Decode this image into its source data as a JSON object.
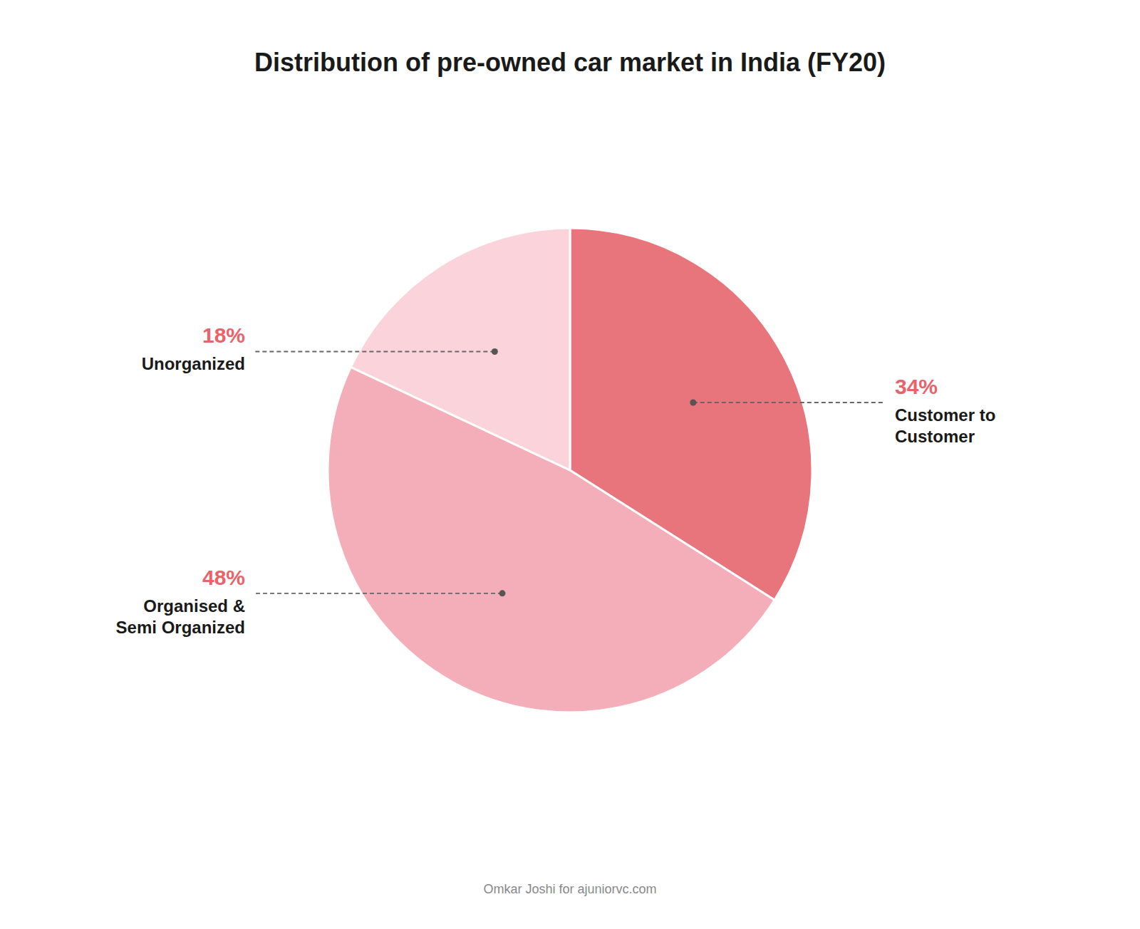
{
  "chart_data": {
    "type": "pie",
    "title": "Distribution of pre-owned car market in India (FY20)",
    "categories": [
      "Customer to\nCustomer",
      "Organised &\nSemi Organized",
      "Unorganized"
    ],
    "values": [
      34,
      48,
      18
    ],
    "value_labels": [
      "34%",
      "48%",
      "18%"
    ],
    "data_labels": true,
    "colors": [
      "#E8747C",
      "#F4AEBA",
      "#FAD4DA"
    ],
    "annotations": [
      "Omkar Joshi for ajuniorvc.com"
    ]
  }
}
